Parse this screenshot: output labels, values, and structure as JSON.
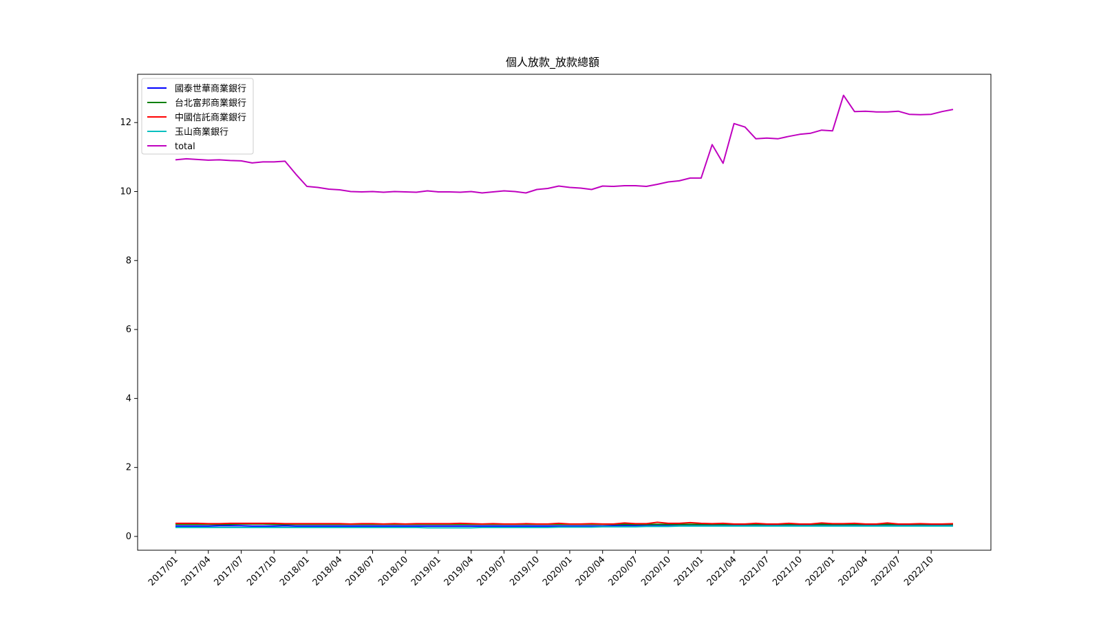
{
  "chart_data": {
    "type": "line",
    "title": "個人放款_放款總額",
    "xlabel": "",
    "ylabel": "",
    "ylim": [
      -0.4,
      13.4
    ],
    "yticks": [
      0,
      2,
      4,
      6,
      8,
      10,
      12
    ],
    "grid": false,
    "legend_position": "top-left",
    "x": [
      "2017/01",
      "2017/02",
      "2017/03",
      "2017/04",
      "2017/05",
      "2017/06",
      "2017/07",
      "2017/08",
      "2017/09",
      "2017/10",
      "2017/11",
      "2017/12",
      "2018/01",
      "2018/02",
      "2018/03",
      "2018/04",
      "2018/05",
      "2018/06",
      "2018/07",
      "2018/08",
      "2018/09",
      "2018/10",
      "2018/11",
      "2018/12",
      "2019/01",
      "2019/02",
      "2019/03",
      "2019/04",
      "2019/05",
      "2019/06",
      "2019/07",
      "2019/08",
      "2019/09",
      "2019/10",
      "2019/11",
      "2019/12",
      "2020/01",
      "2020/02",
      "2020/03",
      "2020/04",
      "2020/05",
      "2020/06",
      "2020/07",
      "2020/08",
      "2020/09",
      "2020/10",
      "2020/11",
      "2020/12",
      "2021/01",
      "2021/02",
      "2021/03",
      "2021/04",
      "2021/05",
      "2021/06",
      "2021/07",
      "2021/08",
      "2021/09",
      "2021/10",
      "2021/11",
      "2021/12",
      "2022/01",
      "2022/02",
      "2022/03",
      "2022/04",
      "2022/05",
      "2022/06",
      "2022/07",
      "2022/08",
      "2022/09",
      "2022/10",
      "2022/11",
      "2022/12"
    ],
    "xticks": [
      "2017/01",
      "2017/04",
      "2017/07",
      "2017/10",
      "2018/01",
      "2018/04",
      "2018/07",
      "2018/10",
      "2019/01",
      "2019/04",
      "2019/07",
      "2019/10",
      "2020/01",
      "2020/04",
      "2020/07",
      "2020/10",
      "2021/01",
      "2021/04",
      "2021/07",
      "2021/10",
      "2022/01",
      "2022/04",
      "2022/07",
      "2022/10"
    ],
    "series": [
      {
        "name": "國泰世華商業銀行",
        "color": "#0000ff",
        "values": [
          0.3,
          0.3,
          0.3,
          0.3,
          0.31,
          0.31,
          0.31,
          0.3,
          0.3,
          0.3,
          0.31,
          0.3,
          0.3,
          0.3,
          0.3,
          0.3,
          0.3,
          0.3,
          0.3,
          0.3,
          0.3,
          0.3,
          0.3,
          0.3,
          0.3,
          0.3,
          0.3,
          0.3,
          0.3,
          0.3,
          0.3,
          0.3,
          0.3,
          0.3,
          0.3,
          0.3,
          0.3,
          0.3,
          0.3,
          0.3,
          0.31,
          0.31,
          0.31,
          0.31,
          0.31,
          0.31,
          0.31,
          0.31,
          0.31,
          0.31,
          0.31,
          0.31,
          0.31,
          0.31,
          0.31,
          0.31,
          0.31,
          0.31,
          0.31,
          0.31,
          0.31,
          0.31,
          0.31,
          0.31,
          0.31,
          0.31,
          0.31,
          0.31,
          0.31,
          0.31,
          0.31,
          0.31
        ]
      },
      {
        "name": "台北富邦商業銀行",
        "color": "#008000",
        "values": [
          0.35,
          0.35,
          0.35,
          0.35,
          0.35,
          0.35,
          0.36,
          0.36,
          0.36,
          0.35,
          0.35,
          0.35,
          0.35,
          0.35,
          0.35,
          0.35,
          0.35,
          0.35,
          0.35,
          0.35,
          0.35,
          0.35,
          0.35,
          0.35,
          0.35,
          0.35,
          0.35,
          0.35,
          0.35,
          0.35,
          0.35,
          0.35,
          0.35,
          0.35,
          0.35,
          0.35,
          0.35,
          0.35,
          0.35,
          0.35,
          0.35,
          0.35,
          0.35,
          0.35,
          0.35,
          0.35,
          0.35,
          0.35,
          0.35,
          0.35,
          0.35,
          0.35,
          0.35,
          0.35,
          0.35,
          0.35,
          0.35,
          0.35,
          0.35,
          0.35,
          0.35,
          0.35,
          0.35,
          0.35,
          0.35,
          0.35,
          0.35,
          0.35,
          0.35,
          0.35,
          0.35,
          0.35
        ]
      },
      {
        "name": "中國信託商業銀行",
        "color": "#ff0000",
        "values": [
          0.38,
          0.38,
          0.38,
          0.37,
          0.37,
          0.38,
          0.38,
          0.38,
          0.38,
          0.38,
          0.37,
          0.37,
          0.37,
          0.37,
          0.37,
          0.37,
          0.36,
          0.37,
          0.37,
          0.36,
          0.37,
          0.36,
          0.37,
          0.37,
          0.37,
          0.37,
          0.38,
          0.37,
          0.36,
          0.37,
          0.36,
          0.36,
          0.37,
          0.36,
          0.36,
          0.38,
          0.36,
          0.36,
          0.37,
          0.36,
          0.36,
          0.39,
          0.37,
          0.37,
          0.41,
          0.38,
          0.38,
          0.4,
          0.38,
          0.37,
          0.38,
          0.36,
          0.36,
          0.38,
          0.36,
          0.36,
          0.38,
          0.36,
          0.36,
          0.39,
          0.37,
          0.37,
          0.38,
          0.36,
          0.36,
          0.39,
          0.36,
          0.36,
          0.37,
          0.36,
          0.36,
          0.37
        ]
      },
      {
        "name": "玉山商業銀行",
        "color": "#00bfbf",
        "values": [
          0.26,
          0.26,
          0.26,
          0.26,
          0.26,
          0.26,
          0.26,
          0.26,
          0.26,
          0.26,
          0.26,
          0.26,
          0.26,
          0.26,
          0.26,
          0.26,
          0.26,
          0.26,
          0.26,
          0.26,
          0.26,
          0.26,
          0.26,
          0.25,
          0.25,
          0.25,
          0.25,
          0.25,
          0.26,
          0.26,
          0.26,
          0.26,
          0.26,
          0.26,
          0.26,
          0.27,
          0.27,
          0.27,
          0.27,
          0.28,
          0.28,
          0.28,
          0.28,
          0.29,
          0.29,
          0.29,
          0.3,
          0.3,
          0.3,
          0.3,
          0.3,
          0.3,
          0.3,
          0.3,
          0.3,
          0.3,
          0.3,
          0.3,
          0.3,
          0.3,
          0.3,
          0.3,
          0.3,
          0.3,
          0.3,
          0.3,
          0.3,
          0.3,
          0.3,
          0.3,
          0.3,
          0.3
        ]
      },
      {
        "name": "total",
        "color": "#bf00bf",
        "values": [
          10.92,
          10.95,
          10.93,
          10.91,
          10.92,
          10.9,
          10.89,
          10.83,
          10.86,
          10.86,
          10.88,
          10.5,
          10.15,
          10.12,
          10.07,
          10.05,
          10.0,
          9.99,
          10.0,
          9.98,
          10.0,
          9.99,
          9.98,
          10.02,
          9.99,
          9.99,
          9.98,
          10.0,
          9.96,
          9.99,
          10.02,
          10.0,
          9.96,
          10.06,
          10.09,
          10.16,
          10.12,
          10.1,
          10.06,
          10.16,
          10.15,
          10.17,
          10.17,
          10.15,
          10.21,
          10.28,
          10.31,
          10.39,
          10.39,
          11.36,
          10.82,
          11.97,
          11.87,
          11.53,
          11.55,
          11.53,
          11.6,
          11.66,
          11.69,
          11.78,
          11.76,
          12.79,
          12.32,
          12.33,
          12.31,
          12.31,
          12.33,
          12.24,
          12.23,
          12.24,
          12.32,
          12.38
        ]
      }
    ]
  }
}
